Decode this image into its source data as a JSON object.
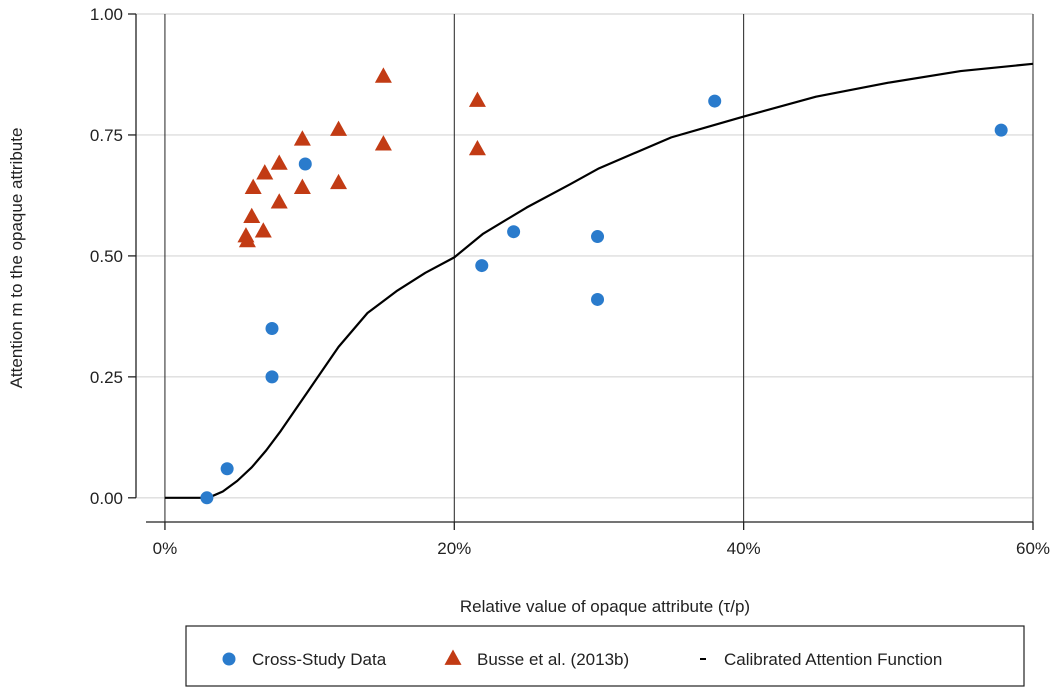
{
  "chart_data": {
    "type": "scatter",
    "xlabel": "Relative value of opaque attribute (τ/p)",
    "ylabel": "Attention m to the opaque attribute",
    "xlim": [
      -0.02,
      0.6
    ],
    "ylim": [
      -0.05,
      1.0
    ],
    "x_ticks": [
      {
        "value": 0.0,
        "label": "0%"
      },
      {
        "value": 0.2,
        "label": "20%"
      },
      {
        "value": 0.4,
        "label": "40%"
      },
      {
        "value": 0.6,
        "label": "60%"
      }
    ],
    "y_ticks": [
      {
        "value": 0.0,
        "label": "0.00"
      },
      {
        "value": 0.25,
        "label": "0.25"
      },
      {
        "value": 0.5,
        "label": "0.50"
      },
      {
        "value": 0.75,
        "label": "0.75"
      },
      {
        "value": 1.0,
        "label": "1.00"
      }
    ],
    "horizontal_grid": true,
    "vertical_grid": true,
    "legend_position": "bottom",
    "series": [
      {
        "name": "Cross-Study Data",
        "marker": "circle",
        "color": "#2a7bcc",
        "points": [
          [
            0.029,
            0.0
          ],
          [
            0.043,
            0.06
          ],
          [
            0.074,
            0.35
          ],
          [
            0.074,
            0.25
          ],
          [
            0.097,
            0.69
          ],
          [
            0.219,
            0.48
          ],
          [
            0.241,
            0.55
          ],
          [
            0.299,
            0.54
          ],
          [
            0.299,
            0.41
          ],
          [
            0.38,
            0.82
          ],
          [
            0.578,
            0.76
          ]
        ]
      },
      {
        "name": "Busse et al. (2013b)",
        "marker": "triangle",
        "color": "#c23b14",
        "points": [
          [
            0.056,
            0.54
          ],
          [
            0.057,
            0.53
          ],
          [
            0.06,
            0.58
          ],
          [
            0.061,
            0.64
          ],
          [
            0.068,
            0.55
          ],
          [
            0.069,
            0.67
          ],
          [
            0.079,
            0.61
          ],
          [
            0.079,
            0.69
          ],
          [
            0.095,
            0.74
          ],
          [
            0.095,
            0.64
          ],
          [
            0.12,
            0.76
          ],
          [
            0.12,
            0.65
          ],
          [
            0.151,
            0.87
          ],
          [
            0.151,
            0.73
          ],
          [
            0.216,
            0.82
          ],
          [
            0.216,
            0.72
          ]
        ]
      },
      {
        "name": "Calibrated Attention Function",
        "marker": "line",
        "color": "#000000",
        "points": [
          [
            0.0,
            0.0
          ],
          [
            0.03,
            0.0
          ],
          [
            0.04,
            0.013
          ],
          [
            0.05,
            0.035
          ],
          [
            0.06,
            0.063
          ],
          [
            0.07,
            0.098
          ],
          [
            0.08,
            0.138
          ],
          [
            0.1,
            0.225
          ],
          [
            0.12,
            0.312
          ],
          [
            0.14,
            0.382
          ],
          [
            0.16,
            0.427
          ],
          [
            0.18,
            0.465
          ],
          [
            0.2,
            0.497
          ],
          [
            0.22,
            0.546
          ],
          [
            0.25,
            0.6
          ],
          [
            0.28,
            0.648
          ],
          [
            0.3,
            0.681
          ],
          [
            0.35,
            0.745
          ],
          [
            0.4,
            0.788
          ],
          [
            0.45,
            0.829
          ],
          [
            0.5,
            0.858
          ],
          [
            0.55,
            0.882
          ],
          [
            0.6,
            0.897
          ]
        ]
      }
    ]
  }
}
